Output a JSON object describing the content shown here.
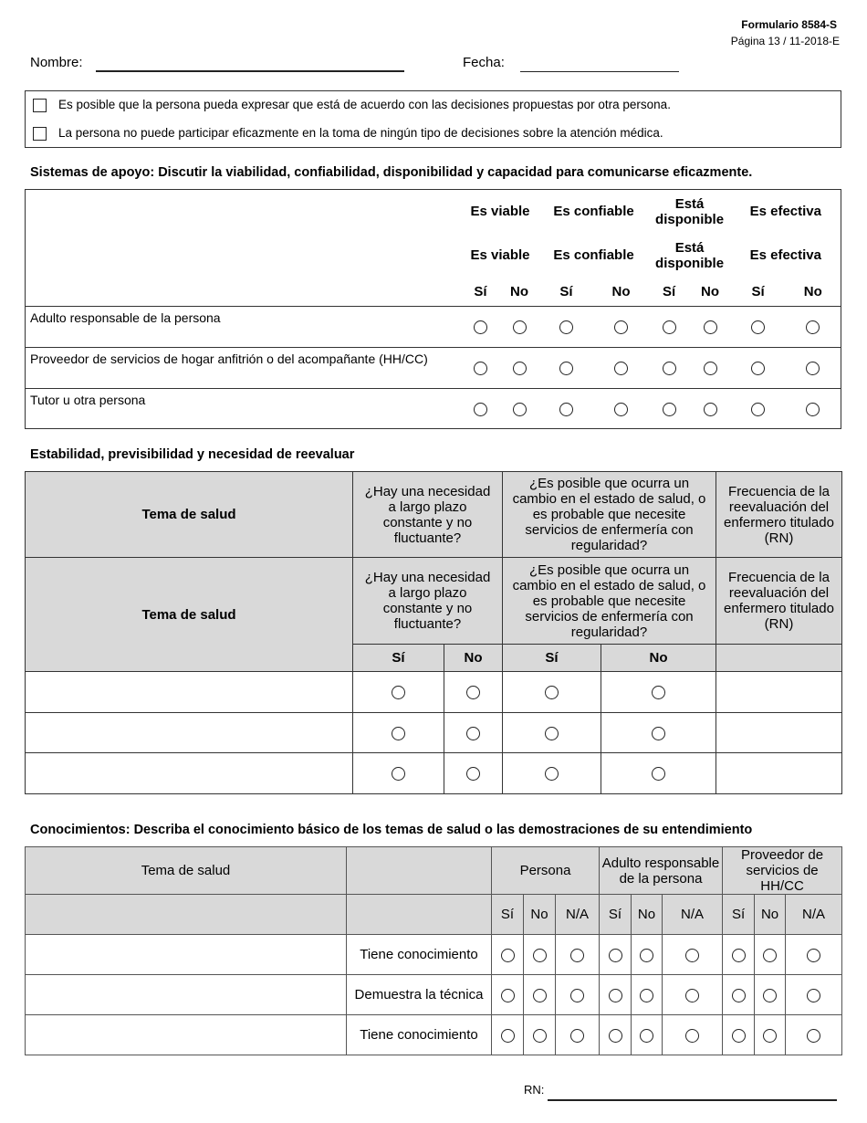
{
  "header": {
    "form_number": "Formulario 8584-S",
    "page": "Página 13  / 11-2018-E",
    "name_label": "Nombre:",
    "date_label": "Fecha:"
  },
  "options": [
    "Es posible que la persona pueda expresar que está de acuerdo con las decisiones propuestas por otra persona.",
    "La persona no puede participar eficazmente en la toma de ningún tipo de decisiones sobre la atención médica."
  ],
  "support": {
    "title": "Sistemas de apoyo: Discutir la viabilidad, confiabilidad, disponibilidad y capacidad para comunicarse eficazmente.",
    "columns": [
      "Es viable",
      "Es confiable",
      "Está disponible",
      "Es efectiva"
    ],
    "yes": "Sí",
    "no": "No",
    "rows": [
      "Adulto responsable de la persona",
      "Proveedor de servicios de hogar anfitrión o del acompañante (HH/CC)",
      "Tutor u otra persona"
    ]
  },
  "stability": {
    "title": "Estabilidad, previsibilidad y necesidad de reevaluar",
    "col_topic": "Tema de salud",
    "col_longterm": "¿Hay una necesidad a largo plazo constante y no fluctuante?",
    "col_change": "¿Es posible que ocurra un cambio en el estado de salud, o es probable que necesite servicios de enfermería con regularidad?",
    "col_freq": "Frecuencia de la reevaluación del enfermero titulado (RN)",
    "yes": "Sí",
    "no": "No"
  },
  "knowledge": {
    "title": "Conocimientos: Describa el conocimiento básico de los temas de salud o las demostraciones de su entendimiento",
    "col_topic": "Tema de salud",
    "groups": [
      "Persona",
      "Adulto responsable de la persona",
      "Proveedor de servicios de HH/CC"
    ],
    "sub": [
      "Sí",
      "No",
      "N/A"
    ],
    "rows": [
      "Tiene conocimiento",
      "Demuestra la técnica",
      "Tiene conocimiento"
    ]
  },
  "footer": {
    "rn_label": "RN:"
  }
}
